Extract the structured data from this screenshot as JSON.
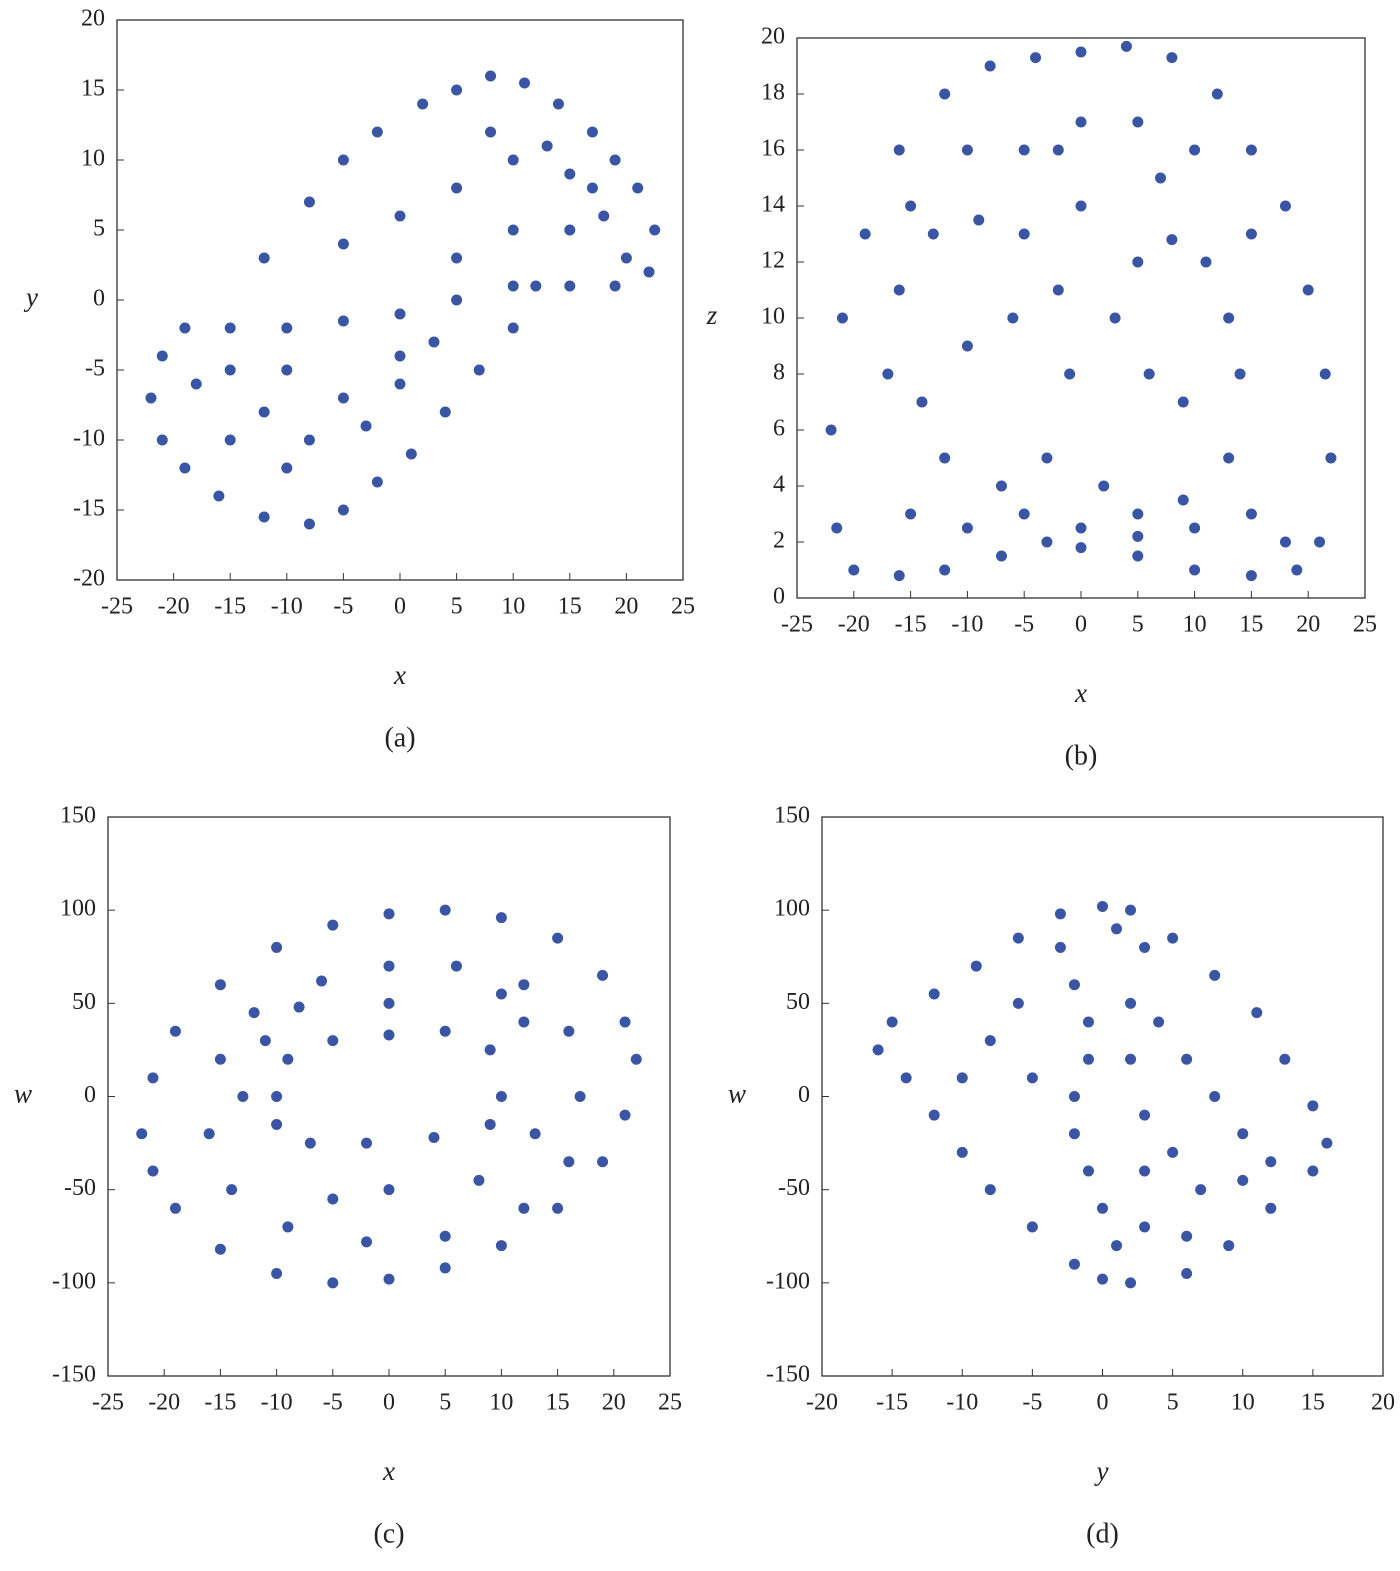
{
  "chart_data": [
    {
      "type": "scatter",
      "caption": "(a)",
      "xlabel": "x",
      "ylabel": "y",
      "color": "#3a55a4",
      "xlim": [
        -25,
        25
      ],
      "xticks": [
        -25,
        -20,
        -15,
        -10,
        -5,
        0,
        5,
        10,
        15,
        20,
        25
      ],
      "ylim": [
        -20,
        20
      ],
      "yticks": [
        -20,
        -15,
        -10,
        -5,
        0,
        5,
        10,
        15,
        20
      ],
      "x": [
        -12,
        -8,
        -5,
        -2,
        2,
        5,
        8,
        11,
        14,
        17,
        19,
        21,
        22.5,
        22,
        19,
        15,
        10,
        5,
        0,
        -5,
        -10,
        -15,
        -19,
        -21,
        -22,
        -21,
        -19,
        -16,
        -12,
        -8,
        -5,
        -2,
        1,
        4,
        7,
        10,
        12,
        -5,
        0,
        5,
        10,
        15,
        18,
        20,
        -15,
        -12,
        -8,
        -3,
        0,
        3,
        -10,
        -5,
        0,
        5,
        10,
        15,
        -18,
        -15,
        -10,
        8,
        13,
        17
      ],
      "values": [
        3,
        7,
        10,
        12,
        14,
        15,
        16,
        15.5,
        14,
        12,
        10,
        8,
        5,
        2,
        1,
        1,
        1,
        0,
        -1,
        -1.5,
        -2,
        -2,
        -2,
        -4,
        -7,
        -10,
        -12,
        -14,
        -15.5,
        -16,
        -15,
        -13,
        -11,
        -8,
        -5,
        -2,
        1,
        4,
        6,
        8,
        10,
        9,
        6,
        3,
        -5,
        -8,
        -10,
        -9,
        -6,
        -3,
        -5,
        -7,
        -4,
        3,
        5,
        5,
        -6,
        -10,
        -12,
        12,
        11,
        8
      ]
    },
    {
      "type": "scatter",
      "caption": "(b)",
      "xlabel": "x",
      "ylabel": "z",
      "color": "#3a55a4",
      "xlim": [
        -25,
        25
      ],
      "xticks": [
        -25,
        -20,
        -15,
        -10,
        -5,
        0,
        5,
        10,
        15,
        20,
        25
      ],
      "ylim": [
        0,
        20
      ],
      "yticks": [
        0,
        2,
        4,
        6,
        8,
        10,
        12,
        14,
        16,
        18,
        20
      ],
      "x": [
        -22,
        -21,
        -19,
        -16,
        -12,
        -8,
        -4,
        0,
        4,
        8,
        12,
        15,
        18,
        20,
        21.5,
        22,
        21,
        19,
        15,
        10,
        5,
        0,
        -3,
        -7,
        -12,
        -16,
        -20,
        -21.5,
        -17,
        -16,
        -13,
        -9,
        -5,
        -2,
        -1,
        -3,
        -7,
        -12,
        -14,
        -10,
        -6,
        3,
        5,
        8,
        11,
        13,
        14,
        13,
        9,
        5,
        2,
        6,
        9,
        -15,
        -10,
        -5,
        0,
        5,
        10,
        15,
        18,
        -10,
        -5,
        0,
        5,
        10,
        -15,
        15,
        0,
        -2,
        7
      ],
      "values": [
        6,
        10,
        13,
        16,
        18,
        19,
        19.3,
        19.5,
        19.7,
        19.3,
        18,
        16,
        14,
        11,
        8,
        5,
        2,
        1,
        0.8,
        1,
        1.5,
        1.8,
        2,
        1.5,
        1,
        0.8,
        1,
        2.5,
        8,
        11,
        13,
        13.5,
        13,
        11,
        8,
        5,
        4,
        5,
        7,
        9,
        10,
        10,
        12,
        12.8,
        12,
        10,
        8,
        5,
        3.5,
        3,
        4,
        8,
        7,
        3,
        2.5,
        3,
        2.5,
        2.2,
        2.5,
        3,
        2,
        16,
        16,
        17,
        17,
        16,
        14,
        13,
        14,
        16,
        15
      ]
    },
    {
      "type": "scatter",
      "caption": "(c)",
      "xlabel": "x",
      "ylabel": "w",
      "color": "#3a55a4",
      "xlim": [
        -25,
        25
      ],
      "xticks": [
        -25,
        -20,
        -15,
        -10,
        -5,
        0,
        5,
        10,
        15,
        20,
        25
      ],
      "ylim": [
        -150,
        150
      ],
      "yticks": [
        -150,
        -100,
        -50,
        0,
        50,
        100,
        150
      ],
      "x": [
        -22,
        -21,
        -19,
        -15,
        -10,
        -5,
        0,
        5,
        10,
        15,
        19,
        21,
        22,
        21,
        19,
        15,
        10,
        5,
        0,
        -5,
        -10,
        -15,
        -19,
        -21,
        -16,
        -15,
        -12,
        -6,
        0,
        6,
        12,
        16,
        17,
        16,
        12,
        5,
        -2,
        -9,
        -14,
        -10,
        -9,
        -5,
        0,
        5,
        9,
        10,
        9,
        4,
        -2,
        -7,
        -10,
        -13,
        -11,
        12,
        13,
        0,
        0,
        -5,
        8,
        -8,
        10
      ],
      "values": [
        -20,
        10,
        35,
        60,
        80,
        92,
        98,
        100,
        96,
        85,
        65,
        40,
        20,
        -10,
        -35,
        -60,
        -80,
        -92,
        -98,
        -100,
        -95,
        -82,
        -60,
        -40,
        -20,
        20,
        45,
        62,
        70,
        70,
        60,
        35,
        0,
        -35,
        -60,
        -75,
        -78,
        -70,
        -50,
        0,
        20,
        30,
        33,
        35,
        25,
        0,
        -15,
        -22,
        -25,
        -25,
        -15,
        0,
        30,
        40,
        -20,
        -50,
        50,
        -55,
        -45,
        48,
        55
      ]
    },
    {
      "type": "scatter",
      "caption": "(d)",
      "xlabel": "y",
      "ylabel": "w",
      "color": "#3a55a4",
      "xlim": [
        -20,
        20
      ],
      "xticks": [
        -20,
        -15,
        -10,
        -5,
        0,
        5,
        10,
        15,
        20
      ],
      "ylim": [
        -150,
        150
      ],
      "yticks": [
        -150,
        -100,
        -50,
        0,
        50,
        100,
        150
      ],
      "x": [
        -16,
        -15,
        -12,
        -9,
        -6,
        -3,
        0,
        2,
        5,
        8,
        11,
        13,
        15,
        16,
        15,
        12,
        9,
        6,
        2,
        0,
        -2,
        -5,
        -8,
        -10,
        -12,
        -14,
        -3,
        -2,
        -1,
        -1,
        -2,
        -2,
        -1,
        0,
        1,
        3,
        3,
        3,
        2,
        2,
        3,
        1,
        -8,
        -6,
        -10,
        6,
        8,
        10,
        12,
        7,
        5,
        -5,
        4,
        6,
        10
      ],
      "values": [
        25,
        40,
        55,
        70,
        85,
        98,
        102,
        100,
        85,
        65,
        45,
        20,
        -5,
        -25,
        -40,
        -60,
        -80,
        -95,
        -100,
        -98,
        -90,
        -70,
        -50,
        -30,
        -10,
        10,
        80,
        60,
        40,
        20,
        0,
        -20,
        -40,
        -60,
        -80,
        -70,
        -40,
        -10,
        20,
        50,
        80,
        90,
        30,
        50,
        10,
        20,
        0,
        -20,
        -35,
        -50,
        -30,
        10,
        40,
        -75,
        -45
      ]
    }
  ]
}
